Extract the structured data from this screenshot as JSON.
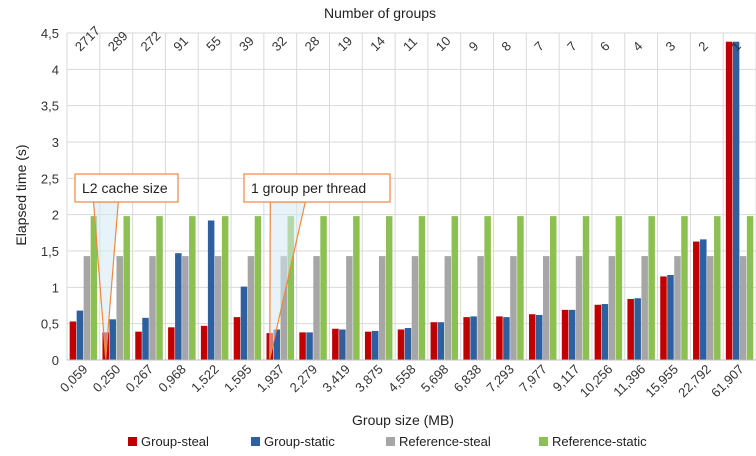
{
  "chart_data": {
    "type": "bar",
    "title": "",
    "xlabel": "Group size (MB)",
    "ylabel": "Elapsed time (s)",
    "top_axis_label": "Number of groups",
    "ylim": [
      0,
      4.5
    ],
    "y_ticks": [
      "0",
      "0,5",
      "1",
      "1,5",
      "2",
      "2,5",
      "3",
      "3,5",
      "4",
      "4,5"
    ],
    "grid": true,
    "legend_position": "bottom",
    "categories": [
      "0,059",
      "0,250",
      "0,267",
      "0,968",
      "1,522",
      "1,595",
      "1,937",
      "2,279",
      "3,419",
      "3,875",
      "4,558",
      "5,698",
      "6,838",
      "7,293",
      "7,977",
      "9,117",
      "10,256",
      "11,396",
      "15,955",
      "22,792",
      "61,907"
    ],
    "top_categories": [
      "2717",
      "289",
      "272",
      "91",
      "55",
      "39",
      "32",
      "28",
      "19",
      "14",
      "11",
      "10",
      "9",
      "8",
      "7",
      "7",
      "6",
      "4",
      "3",
      "2",
      "1"
    ],
    "series": [
      {
        "name": "Group-steal",
        "color": "#c00000",
        "values": [
          0.53,
          0.38,
          0.39,
          0.45,
          0.47,
          0.59,
          0.37,
          0.38,
          0.43,
          0.39,
          0.42,
          0.52,
          0.59,
          0.6,
          0.63,
          0.69,
          0.76,
          0.84,
          1.15,
          1.63,
          4.38
        ]
      },
      {
        "name": "Group-static",
        "color": "#2e5f9e",
        "values": [
          0.68,
          0.56,
          0.58,
          1.47,
          1.92,
          1.01,
          0.42,
          0.38,
          0.42,
          0.4,
          0.44,
          0.52,
          0.6,
          0.59,
          0.62,
          0.69,
          0.77,
          0.85,
          1.17,
          1.66,
          4.38
        ]
      },
      {
        "name": "Reference-steal",
        "color": "#a6a6a6",
        "values": [
          1.43,
          1.43,
          1.43,
          1.43,
          1.43,
          1.43,
          1.43,
          1.43,
          1.43,
          1.43,
          1.43,
          1.43,
          1.43,
          1.43,
          1.43,
          1.43,
          1.43,
          1.43,
          1.43,
          1.43,
          1.43
        ]
      },
      {
        "name": "Reference-static",
        "color": "#8cc152",
        "values": [
          1.98,
          1.98,
          1.98,
          1.98,
          1.98,
          1.98,
          1.98,
          1.98,
          1.98,
          1.98,
          1.98,
          1.98,
          1.98,
          1.98,
          1.98,
          1.98,
          1.98,
          1.98,
          1.98,
          1.98,
          1.98
        ]
      }
    ],
    "annotations": [
      {
        "text": "L2 cache size",
        "points_to_category": "0,250"
      },
      {
        "text": "1 group per thread",
        "points_to_category": "1,937"
      }
    ]
  }
}
